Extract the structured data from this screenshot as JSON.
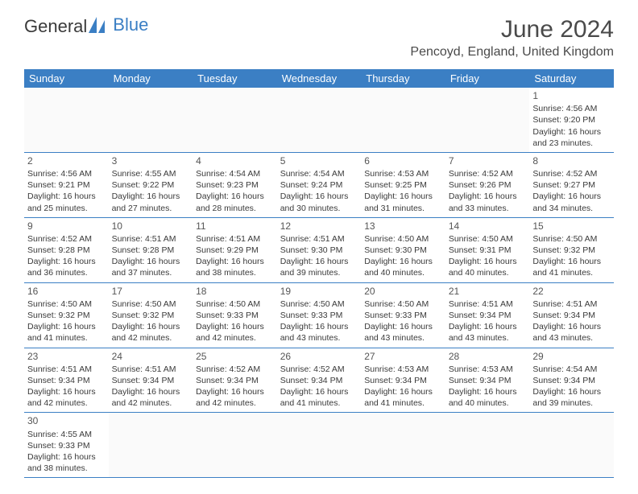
{
  "logo": {
    "text1": "General",
    "text2": "Blue"
  },
  "title": "June 2024",
  "location": "Pencoyd, England, United Kingdom",
  "header_bg": "#3b7fc4",
  "header_text_color": "#ffffff",
  "row_border_color": "#3b7fc4",
  "text_color": "#3a3a3a",
  "day_headers": [
    "Sunday",
    "Monday",
    "Tuesday",
    "Wednesday",
    "Thursday",
    "Friday",
    "Saturday"
  ],
  "weeks": [
    [
      null,
      null,
      null,
      null,
      null,
      null,
      {
        "day": "1",
        "sunrise": "Sunrise: 4:56 AM",
        "sunset": "Sunset: 9:20 PM",
        "daylight1": "Daylight: 16 hours",
        "daylight2": "and 23 minutes."
      }
    ],
    [
      {
        "day": "2",
        "sunrise": "Sunrise: 4:56 AM",
        "sunset": "Sunset: 9:21 PM",
        "daylight1": "Daylight: 16 hours",
        "daylight2": "and 25 minutes."
      },
      {
        "day": "3",
        "sunrise": "Sunrise: 4:55 AM",
        "sunset": "Sunset: 9:22 PM",
        "daylight1": "Daylight: 16 hours",
        "daylight2": "and 27 minutes."
      },
      {
        "day": "4",
        "sunrise": "Sunrise: 4:54 AM",
        "sunset": "Sunset: 9:23 PM",
        "daylight1": "Daylight: 16 hours",
        "daylight2": "and 28 minutes."
      },
      {
        "day": "5",
        "sunrise": "Sunrise: 4:54 AM",
        "sunset": "Sunset: 9:24 PM",
        "daylight1": "Daylight: 16 hours",
        "daylight2": "and 30 minutes."
      },
      {
        "day": "6",
        "sunrise": "Sunrise: 4:53 AM",
        "sunset": "Sunset: 9:25 PM",
        "daylight1": "Daylight: 16 hours",
        "daylight2": "and 31 minutes."
      },
      {
        "day": "7",
        "sunrise": "Sunrise: 4:52 AM",
        "sunset": "Sunset: 9:26 PM",
        "daylight1": "Daylight: 16 hours",
        "daylight2": "and 33 minutes."
      },
      {
        "day": "8",
        "sunrise": "Sunrise: 4:52 AM",
        "sunset": "Sunset: 9:27 PM",
        "daylight1": "Daylight: 16 hours",
        "daylight2": "and 34 minutes."
      }
    ],
    [
      {
        "day": "9",
        "sunrise": "Sunrise: 4:52 AM",
        "sunset": "Sunset: 9:28 PM",
        "daylight1": "Daylight: 16 hours",
        "daylight2": "and 36 minutes."
      },
      {
        "day": "10",
        "sunrise": "Sunrise: 4:51 AM",
        "sunset": "Sunset: 9:28 PM",
        "daylight1": "Daylight: 16 hours",
        "daylight2": "and 37 minutes."
      },
      {
        "day": "11",
        "sunrise": "Sunrise: 4:51 AM",
        "sunset": "Sunset: 9:29 PM",
        "daylight1": "Daylight: 16 hours",
        "daylight2": "and 38 minutes."
      },
      {
        "day": "12",
        "sunrise": "Sunrise: 4:51 AM",
        "sunset": "Sunset: 9:30 PM",
        "daylight1": "Daylight: 16 hours",
        "daylight2": "and 39 minutes."
      },
      {
        "day": "13",
        "sunrise": "Sunrise: 4:50 AM",
        "sunset": "Sunset: 9:30 PM",
        "daylight1": "Daylight: 16 hours",
        "daylight2": "and 40 minutes."
      },
      {
        "day": "14",
        "sunrise": "Sunrise: 4:50 AM",
        "sunset": "Sunset: 9:31 PM",
        "daylight1": "Daylight: 16 hours",
        "daylight2": "and 40 minutes."
      },
      {
        "day": "15",
        "sunrise": "Sunrise: 4:50 AM",
        "sunset": "Sunset: 9:32 PM",
        "daylight1": "Daylight: 16 hours",
        "daylight2": "and 41 minutes."
      }
    ],
    [
      {
        "day": "16",
        "sunrise": "Sunrise: 4:50 AM",
        "sunset": "Sunset: 9:32 PM",
        "daylight1": "Daylight: 16 hours",
        "daylight2": "and 41 minutes."
      },
      {
        "day": "17",
        "sunrise": "Sunrise: 4:50 AM",
        "sunset": "Sunset: 9:32 PM",
        "daylight1": "Daylight: 16 hours",
        "daylight2": "and 42 minutes."
      },
      {
        "day": "18",
        "sunrise": "Sunrise: 4:50 AM",
        "sunset": "Sunset: 9:33 PM",
        "daylight1": "Daylight: 16 hours",
        "daylight2": "and 42 minutes."
      },
      {
        "day": "19",
        "sunrise": "Sunrise: 4:50 AM",
        "sunset": "Sunset: 9:33 PM",
        "daylight1": "Daylight: 16 hours",
        "daylight2": "and 43 minutes."
      },
      {
        "day": "20",
        "sunrise": "Sunrise: 4:50 AM",
        "sunset": "Sunset: 9:33 PM",
        "daylight1": "Daylight: 16 hours",
        "daylight2": "and 43 minutes."
      },
      {
        "day": "21",
        "sunrise": "Sunrise: 4:51 AM",
        "sunset": "Sunset: 9:34 PM",
        "daylight1": "Daylight: 16 hours",
        "daylight2": "and 43 minutes."
      },
      {
        "day": "22",
        "sunrise": "Sunrise: 4:51 AM",
        "sunset": "Sunset: 9:34 PM",
        "daylight1": "Daylight: 16 hours",
        "daylight2": "and 43 minutes."
      }
    ],
    [
      {
        "day": "23",
        "sunrise": "Sunrise: 4:51 AM",
        "sunset": "Sunset: 9:34 PM",
        "daylight1": "Daylight: 16 hours",
        "daylight2": "and 42 minutes."
      },
      {
        "day": "24",
        "sunrise": "Sunrise: 4:51 AM",
        "sunset": "Sunset: 9:34 PM",
        "daylight1": "Daylight: 16 hours",
        "daylight2": "and 42 minutes."
      },
      {
        "day": "25",
        "sunrise": "Sunrise: 4:52 AM",
        "sunset": "Sunset: 9:34 PM",
        "daylight1": "Daylight: 16 hours",
        "daylight2": "and 42 minutes."
      },
      {
        "day": "26",
        "sunrise": "Sunrise: 4:52 AM",
        "sunset": "Sunset: 9:34 PM",
        "daylight1": "Daylight: 16 hours",
        "daylight2": "and 41 minutes."
      },
      {
        "day": "27",
        "sunrise": "Sunrise: 4:53 AM",
        "sunset": "Sunset: 9:34 PM",
        "daylight1": "Daylight: 16 hours",
        "daylight2": "and 41 minutes."
      },
      {
        "day": "28",
        "sunrise": "Sunrise: 4:53 AM",
        "sunset": "Sunset: 9:34 PM",
        "daylight1": "Daylight: 16 hours",
        "daylight2": "and 40 minutes."
      },
      {
        "day": "29",
        "sunrise": "Sunrise: 4:54 AM",
        "sunset": "Sunset: 9:34 PM",
        "daylight1": "Daylight: 16 hours",
        "daylight2": "and 39 minutes."
      }
    ],
    [
      {
        "day": "30",
        "sunrise": "Sunrise: 4:55 AM",
        "sunset": "Sunset: 9:33 PM",
        "daylight1": "Daylight: 16 hours",
        "daylight2": "and 38 minutes."
      },
      null,
      null,
      null,
      null,
      null,
      null
    ]
  ]
}
